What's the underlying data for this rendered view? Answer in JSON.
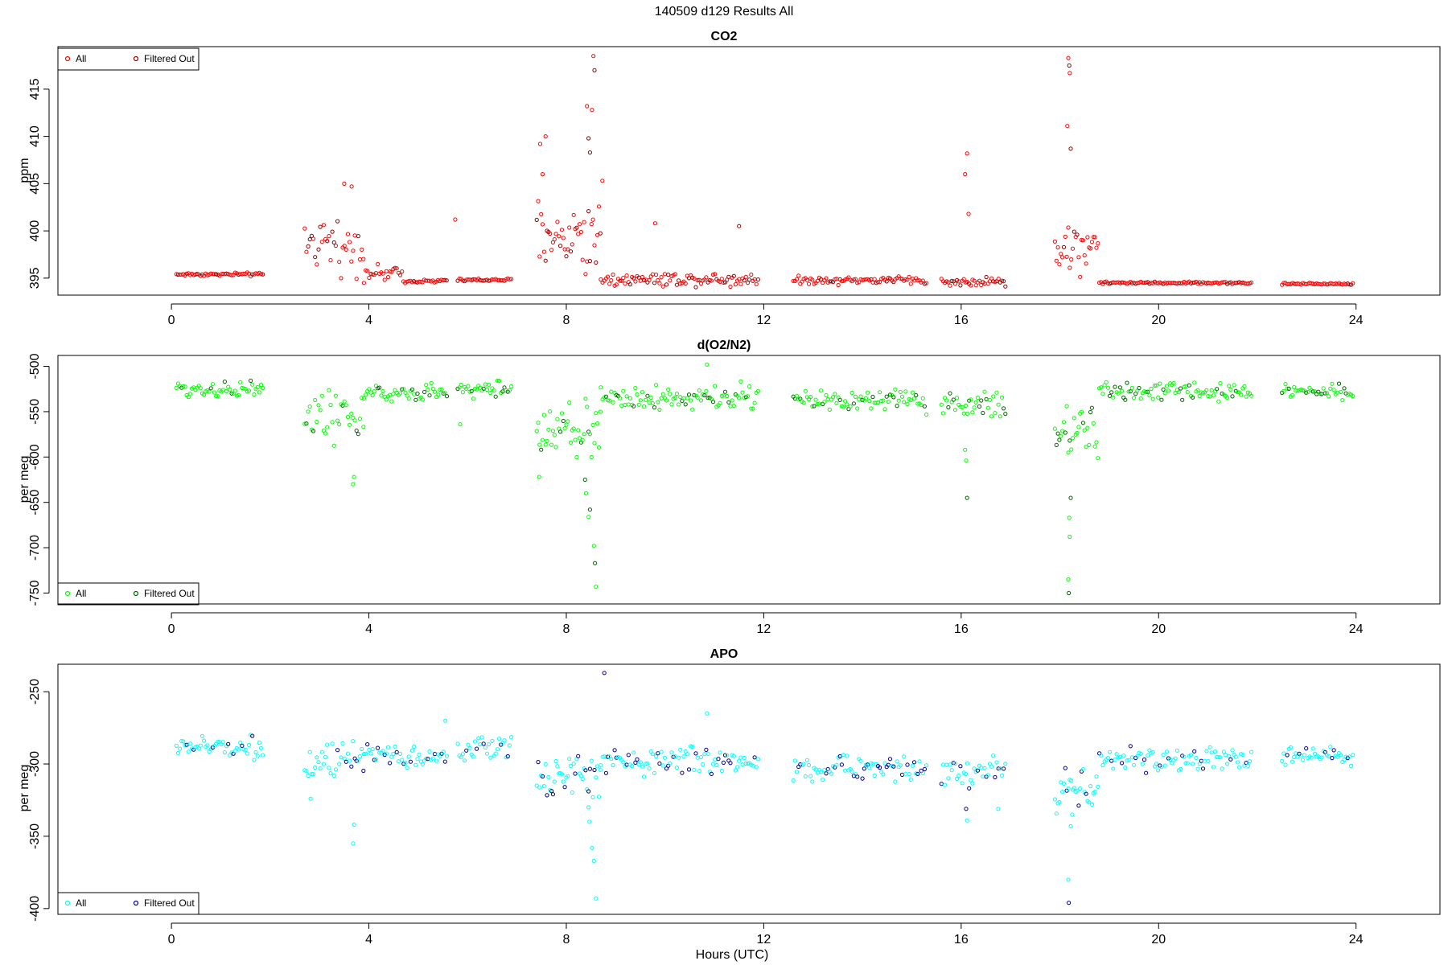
{
  "figure": {
    "title": "140509   d129   Results All",
    "xlabel": "Hours (UTC)"
  },
  "chart_data": [
    {
      "type": "scatter",
      "title": "CO2",
      "ylabel": "ppm",
      "xlim": [
        -2.3,
        25.7
      ],
      "ylim": [
        393.2,
        419.5
      ],
      "xticks": [
        0,
        4,
        8,
        12,
        16,
        20,
        24
      ],
      "yticks": [
        395,
        400,
        405,
        410,
        415
      ],
      "legend_position": "top-left",
      "colors": {
        "all": "#ff0000",
        "filtered": "#8b0000"
      },
      "series": [
        {
          "name": "All"
        },
        {
          "name": "Filtered Out"
        }
      ],
      "segments": [
        {
          "x0": 0.1,
          "x1": 1.85,
          "base": 395.4,
          "noise": 0.15,
          "step": 0.035
        },
        {
          "x0": 2.7,
          "x1": 3.9,
          "base": 398.5,
          "noise": 2.2,
          "step": 0.035
        },
        {
          "x0": 3.9,
          "x1": 4.7,
          "base": 395.5,
          "noise": 0.6,
          "step": 0.035
        },
        {
          "x0": 4.7,
          "x1": 5.6,
          "base": 394.7,
          "noise": 0.15,
          "step": 0.035
        },
        {
          "x0": 5.8,
          "x1": 6.9,
          "base": 394.8,
          "noise": 0.15,
          "step": 0.035
        },
        {
          "x0": 7.4,
          "x1": 8.7,
          "base": 399.5,
          "noise": 3.5,
          "step": 0.03
        },
        {
          "x0": 8.7,
          "x1": 11.9,
          "base": 394.9,
          "noise": 0.6,
          "step": 0.035
        },
        {
          "x0": 12.6,
          "x1": 15.3,
          "base": 394.8,
          "noise": 0.35,
          "step": 0.035
        },
        {
          "x0": 15.6,
          "x1": 16.9,
          "base": 394.6,
          "noise": 0.4,
          "step": 0.035
        },
        {
          "x0": 17.9,
          "x1": 18.8,
          "base": 398.5,
          "noise": 2.5,
          "step": 0.03
        },
        {
          "x0": 18.8,
          "x1": 21.9,
          "base": 394.5,
          "noise": 0.1,
          "step": 0.035
        },
        {
          "x0": 22.5,
          "x1": 23.95,
          "base": 394.4,
          "noise": 0.1,
          "step": 0.035
        }
      ],
      "extra_points": [
        [
          8.55,
          418.5
        ],
        [
          8.57,
          417.0
        ],
        [
          8.42,
          413.2
        ],
        [
          8.52,
          412.8
        ],
        [
          8.45,
          409.8
        ],
        [
          7.58,
          410.0
        ],
        [
          7.47,
          409.2
        ],
        [
          7.52,
          406.0
        ],
        [
          8.48,
          408.3
        ],
        [
          8.73,
          405.3
        ],
        [
          18.17,
          418.3
        ],
        [
          18.19,
          417.5
        ],
        [
          18.2,
          416.7
        ],
        [
          18.15,
          411.1
        ],
        [
          18.22,
          408.7
        ],
        [
          16.12,
          408.2
        ],
        [
          16.08,
          406.0
        ],
        [
          16.15,
          401.8
        ],
        [
          5.75,
          401.2
        ],
        [
          3.5,
          405.0
        ],
        [
          3.65,
          404.7
        ],
        [
          11.5,
          400.5
        ],
        [
          9.8,
          400.8
        ]
      ]
    },
    {
      "type": "scatter",
      "title": "d(O2/N2)",
      "ylabel": "per meg",
      "xlim": [
        -2.3,
        25.7
      ],
      "ylim": [
        -762,
        -488
      ],
      "xticks": [
        0,
        4,
        8,
        12,
        16,
        20,
        24
      ],
      "yticks": [
        -750,
        -700,
        -650,
        -600,
        -550,
        -500
      ],
      "legend_position": "bottom-left",
      "colors": {
        "all": "#00ff00",
        "filtered": "#006400"
      },
      "series": [
        {
          "name": "All"
        },
        {
          "name": "Filtered Out"
        }
      ],
      "segments": [
        {
          "x0": 0.1,
          "x1": 1.85,
          "base": -525,
          "noise": 8,
          "step": 0.035
        },
        {
          "x0": 2.7,
          "x1": 3.9,
          "base": -555,
          "noise": 22,
          "step": 0.035
        },
        {
          "x0": 3.9,
          "x1": 5.6,
          "base": -530,
          "noise": 8,
          "step": 0.035
        },
        {
          "x0": 5.8,
          "x1": 6.9,
          "base": -525,
          "noise": 8,
          "step": 0.035
        },
        {
          "x0": 7.4,
          "x1": 8.7,
          "base": -570,
          "noise": 25,
          "step": 0.03
        },
        {
          "x0": 8.7,
          "x1": 11.9,
          "base": -535,
          "noise": 12,
          "step": 0.035
        },
        {
          "x0": 12.6,
          "x1": 15.3,
          "base": -538,
          "noise": 10,
          "step": 0.035
        },
        {
          "x0": 15.6,
          "x1": 16.9,
          "base": -542,
          "noise": 12,
          "step": 0.035
        },
        {
          "x0": 17.9,
          "x1": 18.8,
          "base": -575,
          "noise": 22,
          "step": 0.03
        },
        {
          "x0": 18.8,
          "x1": 21.9,
          "base": -528,
          "noise": 8,
          "step": 0.035
        },
        {
          "x0": 22.5,
          "x1": 23.95,
          "base": -527,
          "noise": 7,
          "step": 0.035
        }
      ],
      "extra_points": [
        [
          8.6,
          -743
        ],
        [
          8.58,
          -717
        ],
        [
          8.56,
          -698
        ],
        [
          8.45,
          -666
        ],
        [
          8.48,
          -658
        ],
        [
          8.4,
          -640
        ],
        [
          8.38,
          -625
        ],
        [
          18.18,
          -750
        ],
        [
          18.17,
          -735
        ],
        [
          18.2,
          -688
        ],
        [
          18.19,
          -667
        ],
        [
          18.22,
          -645
        ],
        [
          16.12,
          -645
        ],
        [
          16.1,
          -604
        ],
        [
          16.08,
          -592
        ],
        [
          3.68,
          -630
        ],
        [
          3.7,
          -622
        ],
        [
          10.85,
          -498
        ],
        [
          5.85,
          -564
        ],
        [
          7.45,
          -622
        ]
      ]
    },
    {
      "type": "scatter",
      "title": "APO",
      "ylabel": "per meg",
      "xlim": [
        -2.3,
        25.7
      ],
      "ylim": [
        -404,
        -231
      ],
      "xticks": [
        0,
        4,
        8,
        12,
        16,
        20,
        24
      ],
      "yticks": [
        -400,
        -350,
        -300,
        -250
      ],
      "legend_position": "bottom-left",
      "colors": {
        "all": "#00ffff",
        "filtered": "#00008b"
      },
      "series": [
        {
          "name": "All"
        },
        {
          "name": "Filtered Out"
        }
      ],
      "segments": [
        {
          "x0": 0.1,
          "x1": 1.85,
          "base": -288,
          "noise": 6,
          "step": 0.035
        },
        {
          "x0": 2.7,
          "x1": 3.9,
          "base": -300,
          "noise": 12,
          "step": 0.035
        },
        {
          "x0": 3.9,
          "x1": 5.6,
          "base": -295,
          "noise": 6,
          "step": 0.035
        },
        {
          "x0": 5.8,
          "x1": 6.9,
          "base": -290,
          "noise": 7,
          "step": 0.035
        },
        {
          "x0": 7.4,
          "x1": 8.7,
          "base": -308,
          "noise": 12,
          "step": 0.03
        },
        {
          "x0": 8.7,
          "x1": 11.9,
          "base": -298,
          "noise": 8,
          "step": 0.035
        },
        {
          "x0": 12.6,
          "x1": 15.3,
          "base": -303,
          "noise": 7,
          "step": 0.035
        },
        {
          "x0": 15.6,
          "x1": 16.9,
          "base": -306,
          "noise": 9,
          "step": 0.035
        },
        {
          "x0": 17.9,
          "x1": 18.8,
          "base": -315,
          "noise": 12,
          "step": 0.03
        },
        {
          "x0": 18.8,
          "x1": 21.9,
          "base": -297,
          "noise": 6,
          "step": 0.035
        },
        {
          "x0": 22.5,
          "x1": 23.95,
          "base": -294,
          "noise": 5,
          "step": 0.035
        }
      ],
      "extra_points": [
        [
          8.77,
          -237
        ],
        [
          8.6,
          -393
        ],
        [
          8.56,
          -367
        ],
        [
          8.52,
          -358
        ],
        [
          8.47,
          -340
        ],
        [
          8.45,
          -330
        ],
        [
          18.18,
          -396
        ],
        [
          18.17,
          -380
        ],
        [
          18.22,
          -343
        ],
        [
          18.25,
          -335
        ],
        [
          16.12,
          -339
        ],
        [
          16.1,
          -331
        ],
        [
          3.68,
          -355
        ],
        [
          3.7,
          -342
        ],
        [
          10.85,
          -265
        ],
        [
          2.82,
          -324
        ],
        [
          5.55,
          -270
        ],
        [
          16.75,
          -331
        ]
      ]
    }
  ]
}
